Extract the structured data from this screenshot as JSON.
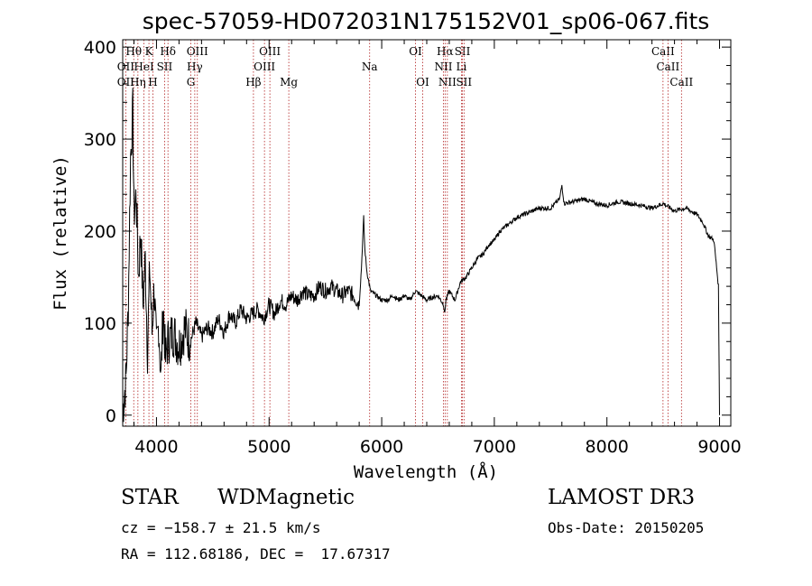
{
  "chart_data": {
    "type": "line",
    "title": "spec-57059-HD072031N175152V01_sp06-067.fits",
    "xlabel": "Wavelength (Å)",
    "ylabel": "Flux (relative)",
    "xlim": [
      3700,
      9100
    ],
    "ylim": [
      -12,
      408
    ],
    "xticks": [
      "4000",
      "5000",
      "6000",
      "7000",
      "8000",
      "9000"
    ],
    "yticks": [
      "0",
      "100",
      "200",
      "300",
      "400"
    ],
    "colors": {
      "line": "#000000",
      "emission_marker": "#b22222"
    },
    "series": [
      {
        "name": "spectrum",
        "x": [
          3700,
          3730,
          3750,
          3770,
          3790,
          3800,
          3820,
          3840,
          3860,
          3880,
          3900,
          3920,
          3940,
          3960,
          3980,
          4000,
          4020,
          4040,
          4060,
          4080,
          4100,
          4150,
          4200,
          4250,
          4300,
          4350,
          4400,
          4450,
          4500,
          4550,
          4600,
          4650,
          4700,
          4750,
          4800,
          4850,
          4900,
          4950,
          5000,
          5050,
          5100,
          5150,
          5200,
          5250,
          5300,
          5350,
          5400,
          5450,
          5500,
          5550,
          5600,
          5650,
          5700,
          5750,
          5800,
          5820,
          5840,
          5850,
          5870,
          5900,
          5950,
          6000,
          6050,
          6100,
          6150,
          6200,
          6250,
          6300,
          6350,
          6400,
          6450,
          6500,
          6550,
          6560,
          6570,
          6600,
          6650,
          6700,
          6750,
          6800,
          6850,
          6900,
          6950,
          7000,
          7050,
          7100,
          7200,
          7300,
          7400,
          7500,
          7580,
          7600,
          7620,
          7700,
          7800,
          7900,
          8000,
          8100,
          8200,
          8300,
          8400,
          8500,
          8600,
          8700,
          8800,
          8850,
          8900,
          8950,
          8990,
          9000
        ],
        "y": [
          5,
          40,
          120,
          280,
          330,
          220,
          240,
          150,
          200,
          120,
          170,
          70,
          160,
          90,
          140,
          70,
          100,
          40,
          120,
          60,
          80,
          90,
          75,
          95,
          80,
          100,
          85,
          95,
          90,
          105,
          90,
          110,
          100,
          115,
          105,
          110,
          115,
          105,
          120,
          110,
          125,
          120,
          130,
          125,
          135,
          130,
          130,
          140,
          135,
          140,
          135,
          130,
          135,
          130,
          120,
          160,
          215,
          180,
          155,
          135,
          130,
          125,
          125,
          130,
          125,
          130,
          125,
          135,
          130,
          125,
          128,
          130,
          120,
          110,
          125,
          135,
          125,
          145,
          150,
          160,
          170,
          175,
          185,
          190,
          200,
          205,
          215,
          220,
          225,
          225,
          235,
          250,
          230,
          232,
          235,
          230,
          228,
          232,
          230,
          228,
          225,
          230,
          222,
          225,
          218,
          210,
          195,
          190,
          140,
          0
        ]
      }
    ],
    "line_markers": [
      {
        "name": "Hθ",
        "x": 3798,
        "row": 1
      },
      {
        "name": "OII",
        "x": 3727,
        "row": 2
      },
      {
        "name": "OII",
        "x": 3727,
        "row": 3
      },
      {
        "name": "K",
        "x": 3933,
        "row": 1
      },
      {
        "name": "HeI",
        "x": 3889,
        "row": 2
      },
      {
        "name": "Hη",
        "x": 3835,
        "row": 3
      },
      {
        "name": "H",
        "x": 3968,
        "row": 3
      },
      {
        "name": "SII",
        "x": 4072,
        "row": 2
      },
      {
        "name": "Hδ",
        "x": 4102,
        "row": 1
      },
      {
        "name": "OIII",
        "x": 4363,
        "row": 1
      },
      {
        "name": "Hγ",
        "x": 4340,
        "row": 2
      },
      {
        "name": "G",
        "x": 4305,
        "row": 3
      },
      {
        "name": "Hβ",
        "x": 4861,
        "row": 3
      },
      {
        "name": "OIII",
        "x": 5007,
        "row": 1
      },
      {
        "name": "OIII",
        "x": 4959,
        "row": 2
      },
      {
        "name": "Mg",
        "x": 5175,
        "row": 3
      },
      {
        "name": "Na",
        "x": 5893,
        "row": 2
      },
      {
        "name": "OI",
        "x": 6300,
        "row": 1
      },
      {
        "name": "OI",
        "x": 6364,
        "row": 3
      },
      {
        "name": "Hα",
        "x": 6563,
        "row": 1
      },
      {
        "name": "NII",
        "x": 6548,
        "row": 2
      },
      {
        "name": "NII",
        "x": 6583,
        "row": 3
      },
      {
        "name": "SII",
        "x": 6717,
        "row": 1
      },
      {
        "name": "Li",
        "x": 6708,
        "row": 2
      },
      {
        "name": "SII",
        "x": 6731,
        "row": 3
      },
      {
        "name": "CaII",
        "x": 8498,
        "row": 1
      },
      {
        "name": "CaII",
        "x": 8542,
        "row": 2
      },
      {
        "name": "CaII",
        "x": 8662,
        "row": 3
      }
    ]
  },
  "info": {
    "object_class": "STAR",
    "subclass": "WDMagnetic",
    "survey": "LAMOST DR3",
    "velocity": "cz = −158.7 ± 21.5 km/s",
    "obs_date": "Obs-Date: 20150205",
    "coords": "RA = 112.68186, DEC =  17.67317"
  }
}
